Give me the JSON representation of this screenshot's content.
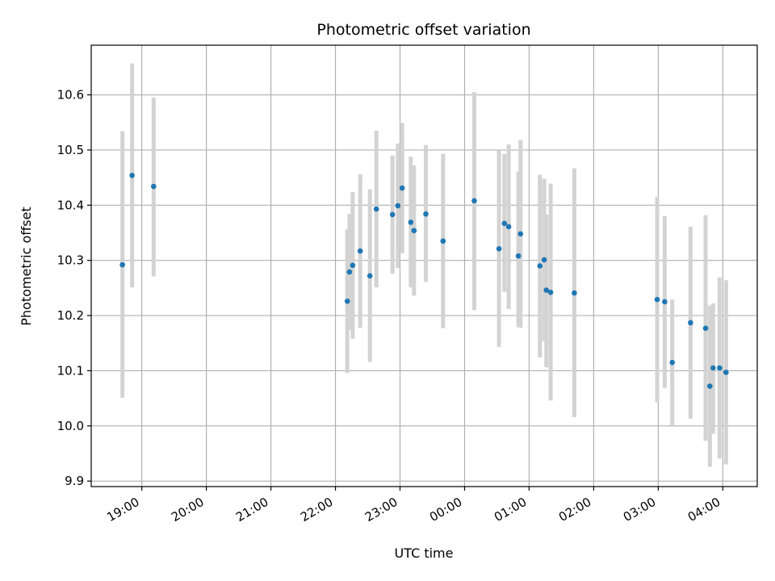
{
  "chart_data": {
    "type": "scatter",
    "title": "Photometric offset variation",
    "xlabel": "UTC time",
    "ylabel": "Photometric offset",
    "xlim": [
      "18:13",
      "04:32"
    ],
    "ylim": [
      9.89,
      10.69
    ],
    "x_ticks": [
      "19:00",
      "20:00",
      "21:00",
      "22:00",
      "23:00",
      "00:00",
      "01:00",
      "02:00",
      "03:00",
      "04:00"
    ],
    "y_ticks": [
      9.9,
      10.0,
      10.1,
      10.2,
      10.3,
      10.4,
      10.5,
      10.6
    ],
    "grid": true,
    "colors": {
      "point": "#1f77b4",
      "errorbar": "#d3d3d3"
    },
    "points": [
      {
        "time": "18:42",
        "y": 10.292,
        "ylow": 10.051,
        "yhigh": 10.534
      },
      {
        "time": "18:51",
        "y": 10.454,
        "ylow": 10.251,
        "yhigh": 10.657
      },
      {
        "time": "19:11",
        "y": 10.434,
        "ylow": 10.271,
        "yhigh": 10.595
      },
      {
        "time": "22:11",
        "y": 10.226,
        "ylow": 10.096,
        "yhigh": 10.356
      },
      {
        "time": "22:13",
        "y": 10.279,
        "ylow": 10.174,
        "yhigh": 10.384
      },
      {
        "time": "22:16",
        "y": 10.291,
        "ylow": 10.158,
        "yhigh": 10.424
      },
      {
        "time": "22:23",
        "y": 10.317,
        "ylow": 10.178,
        "yhigh": 10.456
      },
      {
        "time": "22:32",
        "y": 10.272,
        "ylow": 10.116,
        "yhigh": 10.429
      },
      {
        "time": "22:38",
        "y": 10.393,
        "ylow": 10.251,
        "yhigh": 10.535
      },
      {
        "time": "22:53",
        "y": 10.383,
        "ylow": 10.276,
        "yhigh": 10.49
      },
      {
        "time": "22:58",
        "y": 10.399,
        "ylow": 10.286,
        "yhigh": 10.512
      },
      {
        "time": "23:02",
        "y": 10.431,
        "ylow": 10.313,
        "yhigh": 10.549
      },
      {
        "time": "23:10",
        "y": 10.369,
        "ylow": 10.251,
        "yhigh": 10.488
      },
      {
        "time": "23:13",
        "y": 10.354,
        "ylow": 10.236,
        "yhigh": 10.472
      },
      {
        "time": "23:24",
        "y": 10.384,
        "ylow": 10.261,
        "yhigh": 10.509
      },
      {
        "time": "23:40",
        "y": 10.335,
        "ylow": 10.177,
        "yhigh": 10.493
      },
      {
        "time": "00:09",
        "y": 10.408,
        "ylow": 10.21,
        "yhigh": 10.605
      },
      {
        "time": "00:32",
        "y": 10.321,
        "ylow": 10.143,
        "yhigh": 10.499
      },
      {
        "time": "00:37",
        "y": 10.367,
        "ylow": 10.243,
        "yhigh": 10.493
      },
      {
        "time": "00:41",
        "y": 10.361,
        "ylow": 10.212,
        "yhigh": 10.51
      },
      {
        "time": "00:50",
        "y": 10.308,
        "ylow": 10.179,
        "yhigh": 10.461
      },
      {
        "time": "00:52",
        "y": 10.348,
        "ylow": 10.178,
        "yhigh": 10.518
      },
      {
        "time": "01:10",
        "y": 10.29,
        "ylow": 10.124,
        "yhigh": 10.455
      },
      {
        "time": "01:14",
        "y": 10.301,
        "ylow": 10.154,
        "yhigh": 10.448
      },
      {
        "time": "01:16",
        "y": 10.246,
        "ylow": 10.106,
        "yhigh": 10.383
      },
      {
        "time": "01:20",
        "y": 10.242,
        "ylow": 10.046,
        "yhigh": 10.439
      },
      {
        "time": "01:42",
        "y": 10.241,
        "ylow": 10.016,
        "yhigh": 10.467
      },
      {
        "time": "02:59",
        "y": 10.229,
        "ylow": 10.043,
        "yhigh": 10.415
      },
      {
        "time": "03:06",
        "y": 10.225,
        "ylow": 10.069,
        "yhigh": 10.38
      },
      {
        "time": "03:13",
        "y": 10.115,
        "ylow": 10.001,
        "yhigh": 10.229
      },
      {
        "time": "03:30",
        "y": 10.187,
        "ylow": 10.013,
        "yhigh": 10.361
      },
      {
        "time": "03:44",
        "y": 10.177,
        "ylow": 9.973,
        "yhigh": 10.382
      },
      {
        "time": "03:48",
        "y": 10.072,
        "ylow": 9.926,
        "yhigh": 10.218
      },
      {
        "time": "03:51",
        "y": 10.105,
        "ylow": 9.986,
        "yhigh": 10.222
      },
      {
        "time": "03:57",
        "y": 10.105,
        "ylow": 9.941,
        "yhigh": 10.269
      },
      {
        "time": "04:03",
        "y": 10.097,
        "ylow": 9.93,
        "yhigh": 10.264
      }
    ]
  }
}
